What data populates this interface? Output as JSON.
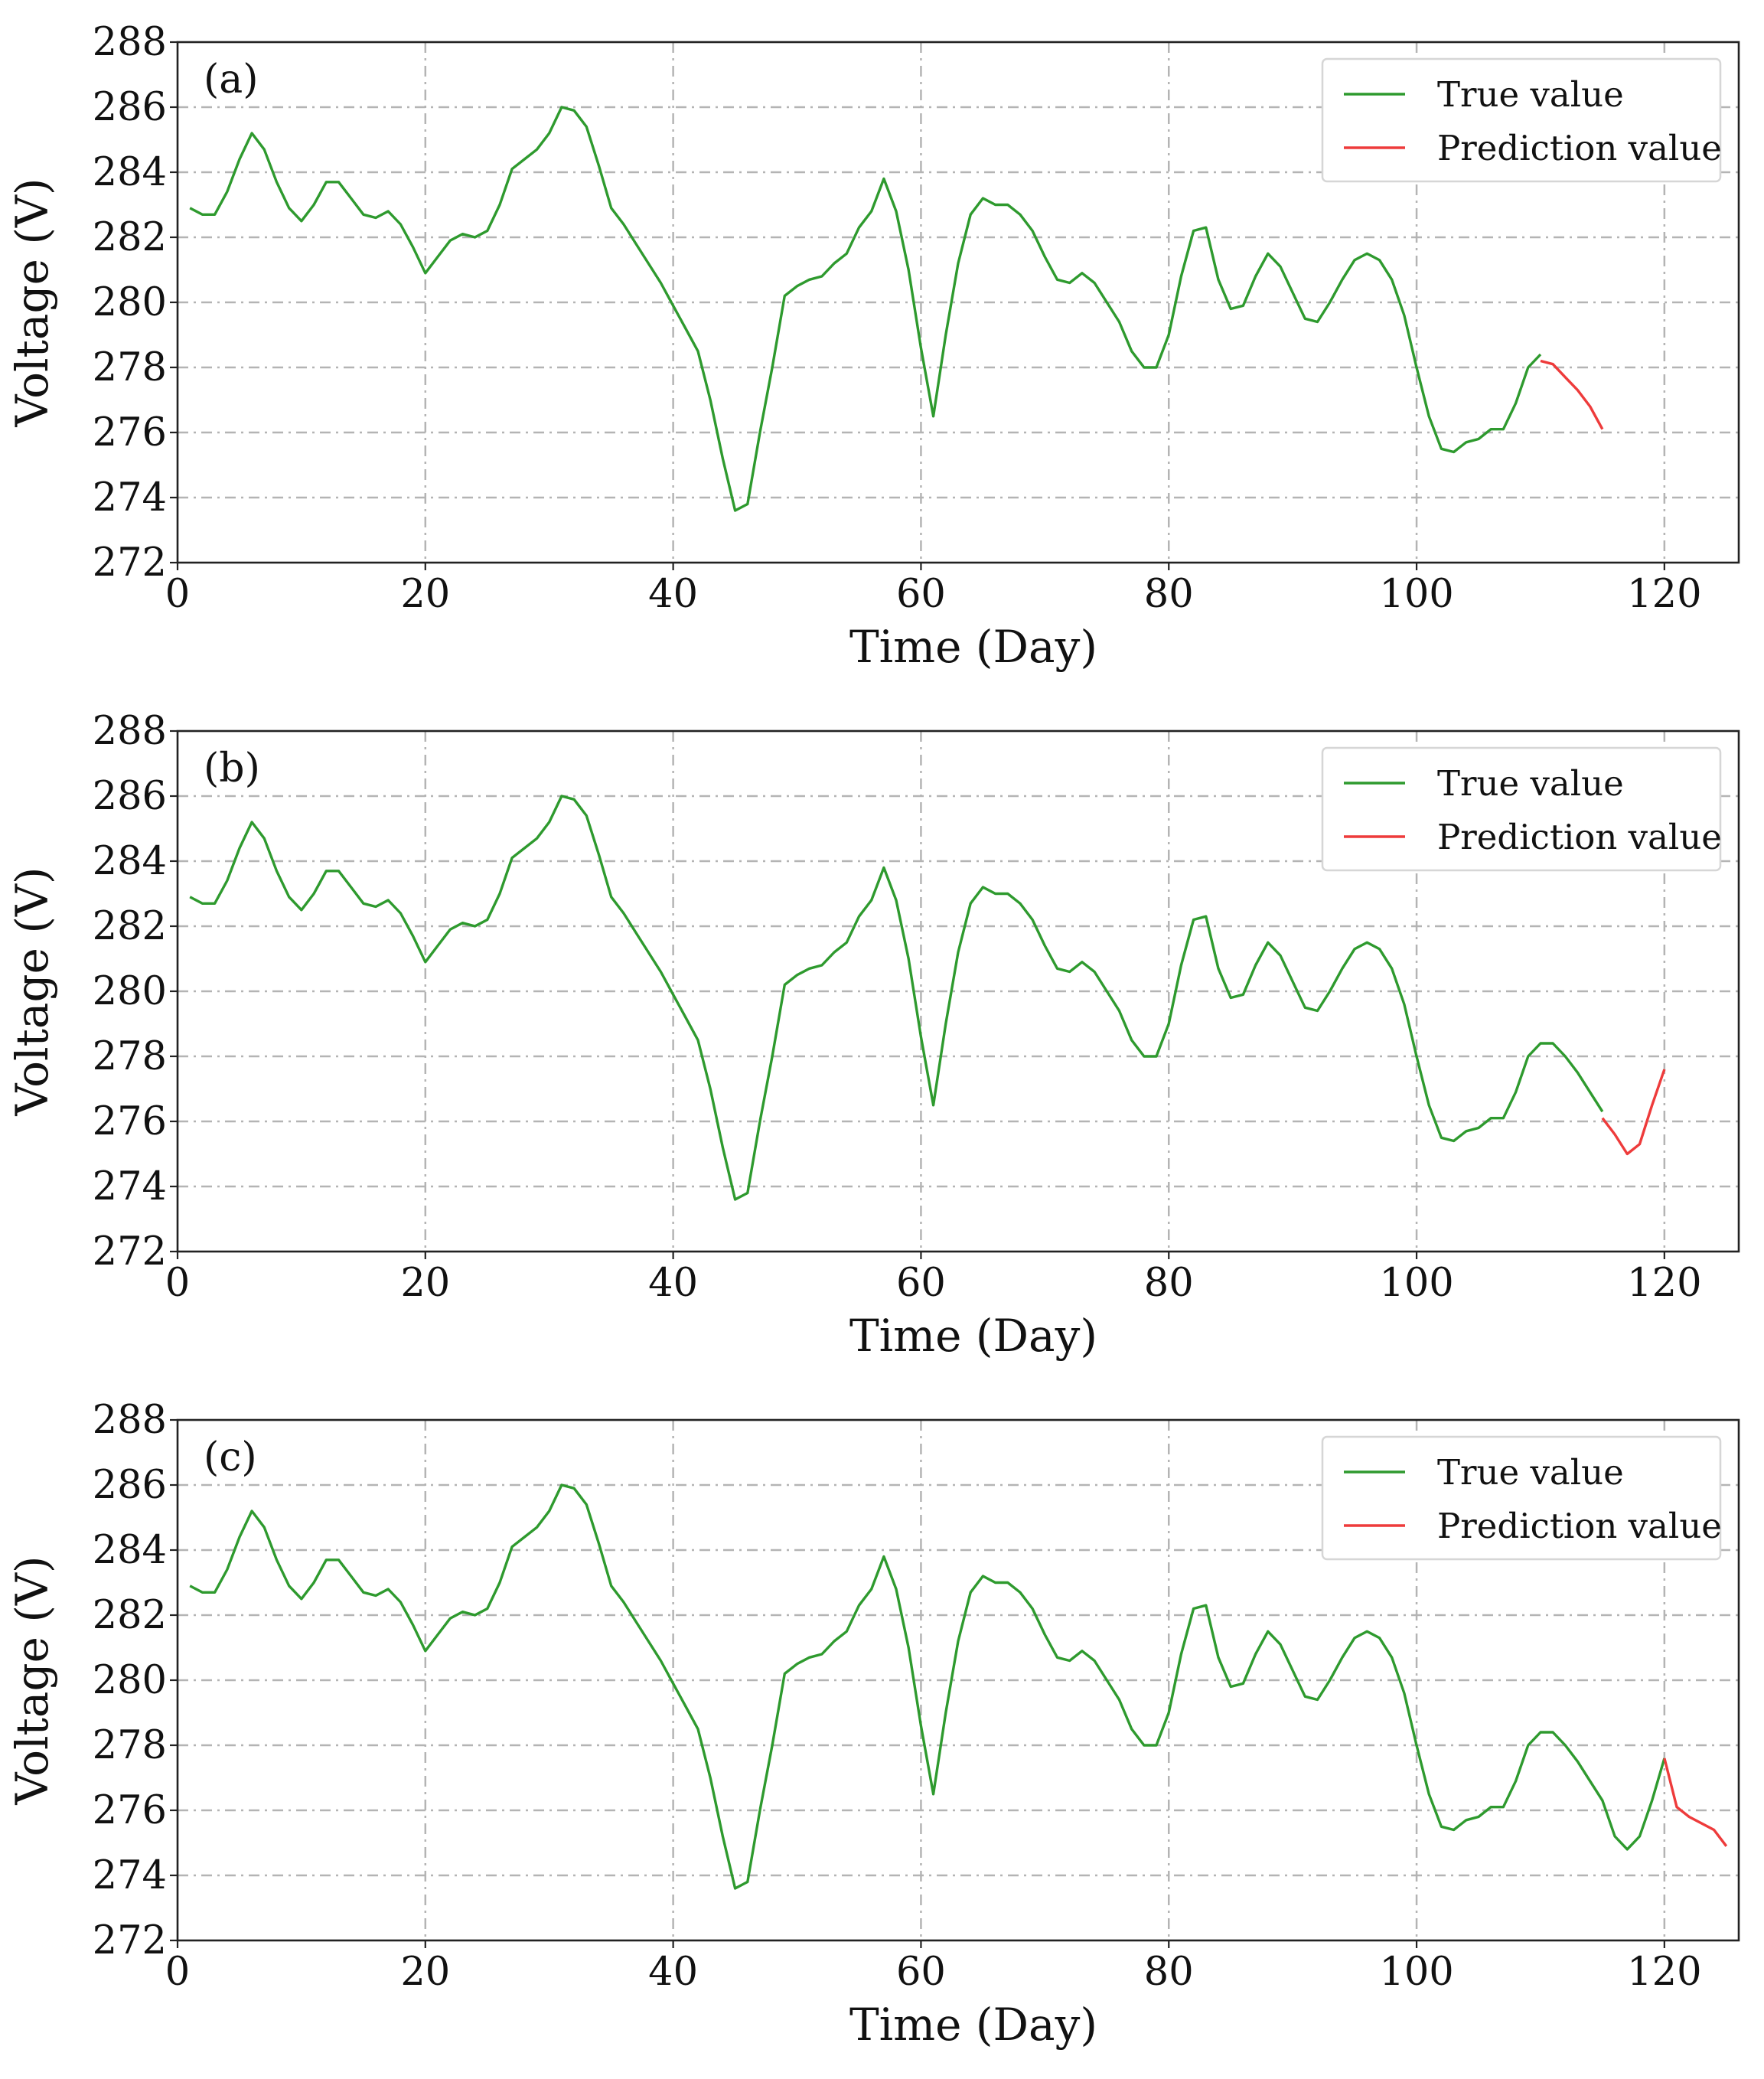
{
  "figure": {
    "series_names": [
      "True value",
      "Prediction value"
    ],
    "colors": {
      "true": "#2e9a2e",
      "prediction": "#ee3b3b"
    }
  },
  "chart_data": [
    {
      "type": "line",
      "panel_label": "(a)",
      "xlabel": "Time (Day)",
      "ylabel": "Voltage (V)",
      "xlim": [
        0,
        126
      ],
      "ylim": [
        272,
        288
      ],
      "xticks": [
        0,
        20,
        40,
        60,
        80,
        100,
        120
      ],
      "yticks": [
        272,
        274,
        276,
        278,
        280,
        282,
        284,
        286,
        288
      ],
      "grid": true,
      "legend": "top-right",
      "series": [
        {
          "name": "True value",
          "color": "#2e9a2e",
          "x": [
            1,
            2,
            3,
            4,
            5,
            6,
            7,
            8,
            9,
            10,
            11,
            12,
            13,
            14,
            15,
            16,
            17,
            18,
            19,
            20,
            21,
            22,
            23,
            24,
            25,
            26,
            27,
            28,
            29,
            30,
            31,
            32,
            33,
            34,
            35,
            36,
            37,
            38,
            39,
            40,
            41,
            42,
            43,
            44,
            45,
            46,
            47,
            48,
            49,
            50,
            51,
            52,
            53,
            54,
            55,
            56,
            57,
            58,
            59,
            60,
            61,
            62,
            63,
            64,
            65,
            66,
            67,
            68,
            69,
            70,
            71,
            72,
            73,
            74,
            75,
            76,
            77,
            78,
            79,
            80,
            81,
            82,
            83,
            84,
            85,
            86,
            87,
            88,
            89,
            90,
            91,
            92,
            93,
            94,
            95,
            96,
            97,
            98,
            99,
            100,
            101,
            102,
            103,
            104,
            105,
            106,
            107,
            108,
            109,
            110
          ],
          "y": [
            282.9,
            282.7,
            282.7,
            283.4,
            284.4,
            285.2,
            284.7,
            283.7,
            282.9,
            282.5,
            283.0,
            283.7,
            283.7,
            283.2,
            282.7,
            282.6,
            282.8,
            282.4,
            281.7,
            280.9,
            281.4,
            281.9,
            282.1,
            282.0,
            282.2,
            283.0,
            284.1,
            284.4,
            284.7,
            285.2,
            286.0,
            285.9,
            285.4,
            284.2,
            282.9,
            282.4,
            281.8,
            281.2,
            280.6,
            279.9,
            279.2,
            278.5,
            277.0,
            275.2,
            273.6,
            273.8,
            276.0,
            278.0,
            280.2,
            280.5,
            280.7,
            280.8,
            281.2,
            281.5,
            282.3,
            282.8,
            283.8,
            282.8,
            281.0,
            278.6,
            276.5,
            279.0,
            281.2,
            282.7,
            283.2,
            283.0,
            283.0,
            282.7,
            282.2,
            281.4,
            280.7,
            280.6,
            280.9,
            280.6,
            280.0,
            279.4,
            278.5,
            278.0,
            278.0,
            279.0,
            280.8,
            282.2,
            282.3,
            280.7,
            279.8,
            279.9,
            280.8,
            281.5,
            281.1,
            280.3,
            279.5,
            279.4,
            280.0,
            280.7,
            281.3,
            281.5,
            281.3,
            280.7,
            279.6,
            278.0,
            276.5,
            275.5,
            275.4,
            275.7,
            275.8,
            276.1,
            276.1,
            276.9,
            278.0,
            278.4
          ]
        },
        {
          "name": "Prediction value",
          "color": "#ee3b3b",
          "x": [
            110,
            111,
            112,
            113,
            114,
            115
          ],
          "y": [
            278.2,
            278.1,
            277.7,
            277.3,
            276.8,
            276.1
          ]
        }
      ]
    },
    {
      "type": "line",
      "panel_label": "(b)",
      "xlabel": "Time (Day)",
      "ylabel": "Voltage (V)",
      "xlim": [
        0,
        126
      ],
      "ylim": [
        272,
        288
      ],
      "xticks": [
        0,
        20,
        40,
        60,
        80,
        100,
        120
      ],
      "yticks": [
        272,
        274,
        276,
        278,
        280,
        282,
        284,
        286,
        288
      ],
      "grid": true,
      "legend": "top-right",
      "series": [
        {
          "name": "True value",
          "color": "#2e9a2e",
          "x": [
            1,
            2,
            3,
            4,
            5,
            6,
            7,
            8,
            9,
            10,
            11,
            12,
            13,
            14,
            15,
            16,
            17,
            18,
            19,
            20,
            21,
            22,
            23,
            24,
            25,
            26,
            27,
            28,
            29,
            30,
            31,
            32,
            33,
            34,
            35,
            36,
            37,
            38,
            39,
            40,
            41,
            42,
            43,
            44,
            45,
            46,
            47,
            48,
            49,
            50,
            51,
            52,
            53,
            54,
            55,
            56,
            57,
            58,
            59,
            60,
            61,
            62,
            63,
            64,
            65,
            66,
            67,
            68,
            69,
            70,
            71,
            72,
            73,
            74,
            75,
            76,
            77,
            78,
            79,
            80,
            81,
            82,
            83,
            84,
            85,
            86,
            87,
            88,
            89,
            90,
            91,
            92,
            93,
            94,
            95,
            96,
            97,
            98,
            99,
            100,
            101,
            102,
            103,
            104,
            105,
            106,
            107,
            108,
            109,
            110,
            111,
            112,
            113,
            114,
            115
          ],
          "y": [
            282.9,
            282.7,
            282.7,
            283.4,
            284.4,
            285.2,
            284.7,
            283.7,
            282.9,
            282.5,
            283.0,
            283.7,
            283.7,
            283.2,
            282.7,
            282.6,
            282.8,
            282.4,
            281.7,
            280.9,
            281.4,
            281.9,
            282.1,
            282.0,
            282.2,
            283.0,
            284.1,
            284.4,
            284.7,
            285.2,
            286.0,
            285.9,
            285.4,
            284.2,
            282.9,
            282.4,
            281.8,
            281.2,
            280.6,
            279.9,
            279.2,
            278.5,
            277.0,
            275.2,
            273.6,
            273.8,
            276.0,
            278.0,
            280.2,
            280.5,
            280.7,
            280.8,
            281.2,
            281.5,
            282.3,
            282.8,
            283.8,
            282.8,
            281.0,
            278.6,
            276.5,
            279.0,
            281.2,
            282.7,
            283.2,
            283.0,
            283.0,
            282.7,
            282.2,
            281.4,
            280.7,
            280.6,
            280.9,
            280.6,
            280.0,
            279.4,
            278.5,
            278.0,
            278.0,
            279.0,
            280.8,
            282.2,
            282.3,
            280.7,
            279.8,
            279.9,
            280.8,
            281.5,
            281.1,
            280.3,
            279.5,
            279.4,
            280.0,
            280.7,
            281.3,
            281.5,
            281.3,
            280.7,
            279.6,
            278.0,
            276.5,
            275.5,
            275.4,
            275.7,
            275.8,
            276.1,
            276.1,
            276.9,
            278.0,
            278.4,
            278.4,
            278.0,
            277.5,
            276.9,
            276.3
          ]
        },
        {
          "name": "Prediction value",
          "color": "#ee3b3b",
          "x": [
            115,
            116,
            117,
            118,
            119,
            120
          ],
          "y": [
            276.1,
            275.6,
            275.0,
            275.3,
            276.5,
            277.6
          ]
        }
      ]
    },
    {
      "type": "line",
      "panel_label": "(c)",
      "xlabel": "Time (Day)",
      "ylabel": "Voltage (V)",
      "xlim": [
        0,
        126
      ],
      "ylim": [
        272,
        288
      ],
      "xticks": [
        0,
        20,
        40,
        60,
        80,
        100,
        120
      ],
      "yticks": [
        272,
        274,
        276,
        278,
        280,
        282,
        284,
        286,
        288
      ],
      "grid": true,
      "legend": "top-right",
      "series": [
        {
          "name": "True value",
          "color": "#2e9a2e",
          "x": [
            1,
            2,
            3,
            4,
            5,
            6,
            7,
            8,
            9,
            10,
            11,
            12,
            13,
            14,
            15,
            16,
            17,
            18,
            19,
            20,
            21,
            22,
            23,
            24,
            25,
            26,
            27,
            28,
            29,
            30,
            31,
            32,
            33,
            34,
            35,
            36,
            37,
            38,
            39,
            40,
            41,
            42,
            43,
            44,
            45,
            46,
            47,
            48,
            49,
            50,
            51,
            52,
            53,
            54,
            55,
            56,
            57,
            58,
            59,
            60,
            61,
            62,
            63,
            64,
            65,
            66,
            67,
            68,
            69,
            70,
            71,
            72,
            73,
            74,
            75,
            76,
            77,
            78,
            79,
            80,
            81,
            82,
            83,
            84,
            85,
            86,
            87,
            88,
            89,
            90,
            91,
            92,
            93,
            94,
            95,
            96,
            97,
            98,
            99,
            100,
            101,
            102,
            103,
            104,
            105,
            106,
            107,
            108,
            109,
            110,
            111,
            112,
            113,
            114,
            115,
            116,
            117,
            118,
            119,
            120
          ],
          "y": [
            282.9,
            282.7,
            282.7,
            283.4,
            284.4,
            285.2,
            284.7,
            283.7,
            282.9,
            282.5,
            283.0,
            283.7,
            283.7,
            283.2,
            282.7,
            282.6,
            282.8,
            282.4,
            281.7,
            280.9,
            281.4,
            281.9,
            282.1,
            282.0,
            282.2,
            283.0,
            284.1,
            284.4,
            284.7,
            285.2,
            286.0,
            285.9,
            285.4,
            284.2,
            282.9,
            282.4,
            281.8,
            281.2,
            280.6,
            279.9,
            279.2,
            278.5,
            277.0,
            275.2,
            273.6,
            273.8,
            276.0,
            278.0,
            280.2,
            280.5,
            280.7,
            280.8,
            281.2,
            281.5,
            282.3,
            282.8,
            283.8,
            282.8,
            281.0,
            278.6,
            276.5,
            279.0,
            281.2,
            282.7,
            283.2,
            283.0,
            283.0,
            282.7,
            282.2,
            281.4,
            280.7,
            280.6,
            280.9,
            280.6,
            280.0,
            279.4,
            278.5,
            278.0,
            278.0,
            279.0,
            280.8,
            282.2,
            282.3,
            280.7,
            279.8,
            279.9,
            280.8,
            281.5,
            281.1,
            280.3,
            279.5,
            279.4,
            280.0,
            280.7,
            281.3,
            281.5,
            281.3,
            280.7,
            279.6,
            278.0,
            276.5,
            275.5,
            275.4,
            275.7,
            275.8,
            276.1,
            276.1,
            276.9,
            278.0,
            278.4,
            278.4,
            278.0,
            277.5,
            276.9,
            276.3,
            275.2,
            274.8,
            275.2,
            276.3,
            277.6
          ]
        },
        {
          "name": "Prediction value",
          "color": "#ee3b3b",
          "x": [
            120,
            121,
            122,
            123,
            124,
            125
          ],
          "y": [
            277.6,
            276.1,
            275.8,
            275.6,
            275.4,
            274.9
          ]
        }
      ]
    }
  ]
}
